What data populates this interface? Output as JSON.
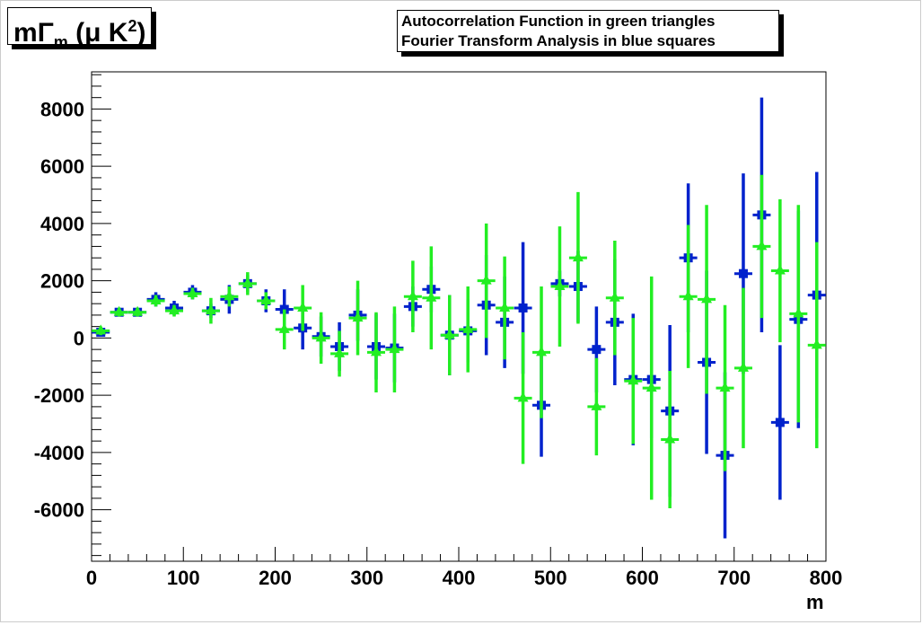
{
  "ylabel": {
    "m": "m",
    "gamma": "Γ",
    "sub": "m",
    "open": " (",
    "mu": "μ",
    "unit": " K",
    "sup": "2",
    "close": ")"
  },
  "legend": {
    "line1": "Autocorrelation Function in green triangles",
    "line2": "Fourier Transform Analysis in blue squares"
  },
  "chart_data": {
    "type": "scatter",
    "xlabel": "m",
    "xlim": [
      0,
      800
    ],
    "ylim": [
      -7800,
      9300
    ],
    "xticks": [
      0,
      100,
      200,
      300,
      400,
      500,
      600,
      700,
      800
    ],
    "yticks": [
      -6000,
      -4000,
      -2000,
      0,
      2000,
      4000,
      6000,
      8000
    ],
    "xtick_labels": [
      "0",
      "100",
      "200",
      "300",
      "400",
      "500",
      "600",
      "700",
      "800"
    ],
    "ytick_labels": [
      "-6000",
      "-4000",
      "-2000",
      "0",
      "2000",
      "4000",
      "6000",
      "8000"
    ],
    "series": [
      {
        "name": "Fourier Transform Analysis",
        "color": "#0022cc",
        "marker": "square",
        "x": [
          10,
          30,
          50,
          70,
          90,
          110,
          130,
          150,
          170,
          190,
          210,
          230,
          250,
          270,
          290,
          310,
          330,
          350,
          370,
          390,
          410,
          430,
          450,
          470,
          490,
          510,
          530,
          550,
          570,
          590,
          610,
          630,
          650,
          670,
          690,
          710,
          730,
          750,
          770,
          790
        ],
        "y": [
          200,
          900,
          900,
          1350,
          1050,
          1600,
          950,
          1350,
          1900,
          1300,
          1000,
          350,
          50,
          -300,
          800,
          -300,
          -350,
          1100,
          1700,
          100,
          250,
          1150,
          550,
          1050,
          -2350,
          1900,
          1800,
          -400,
          550,
          -1450,
          -1450,
          -2550,
          2800,
          -850,
          -4100,
          2250,
          4300,
          -2950,
          650,
          1500
        ],
        "err": [
          150,
          150,
          150,
          250,
          250,
          250,
          250,
          500,
          300,
          400,
          700,
          750,
          700,
          850,
          900,
          1150,
          1200,
          700,
          800,
          1400,
          1100,
          1750,
          1600,
          2300,
          1800,
          450,
          1250,
          1500,
          2200,
          2300,
          2050,
          3000,
          2600,
          3200,
          2900,
          3500,
          4100,
          2700,
          3800,
          4300
        ]
      },
      {
        "name": "Autocorrelation Function",
        "color": "#22ee22",
        "marker": "triangle",
        "x": [
          10,
          30,
          50,
          70,
          90,
          110,
          130,
          150,
          170,
          190,
          210,
          230,
          250,
          270,
          290,
          310,
          330,
          350,
          370,
          390,
          410,
          430,
          450,
          470,
          490,
          510,
          530,
          550,
          570,
          590,
          610,
          630,
          650,
          670,
          690,
          710,
          730,
          750,
          770,
          790
        ],
        "y": [
          250,
          900,
          900,
          1300,
          950,
          1550,
          950,
          1450,
          1900,
          1300,
          300,
          1050,
          0,
          -550,
          700,
          -500,
          -400,
          1450,
          1400,
          100,
          300,
          2000,
          1050,
          -2100,
          -500,
          1800,
          2800,
          -2400,
          1400,
          -1500,
          -1750,
          -3550,
          1450,
          1350,
          -1750,
          -1050,
          3200,
          2350,
          850,
          -250
        ],
        "err": [
          150,
          150,
          150,
          200,
          200,
          200,
          450,
          350,
          400,
          300,
          700,
          800,
          900,
          800,
          1300,
          1400,
          1500,
          1250,
          1800,
          1400,
          1500,
          2000,
          1800,
          2300,
          2300,
          2100,
          2300,
          1700,
          2000,
          2200,
          3900,
          2400,
          2500,
          3300,
          2900,
          2800,
          2500,
          2500,
          3800,
          3600
        ]
      }
    ]
  }
}
